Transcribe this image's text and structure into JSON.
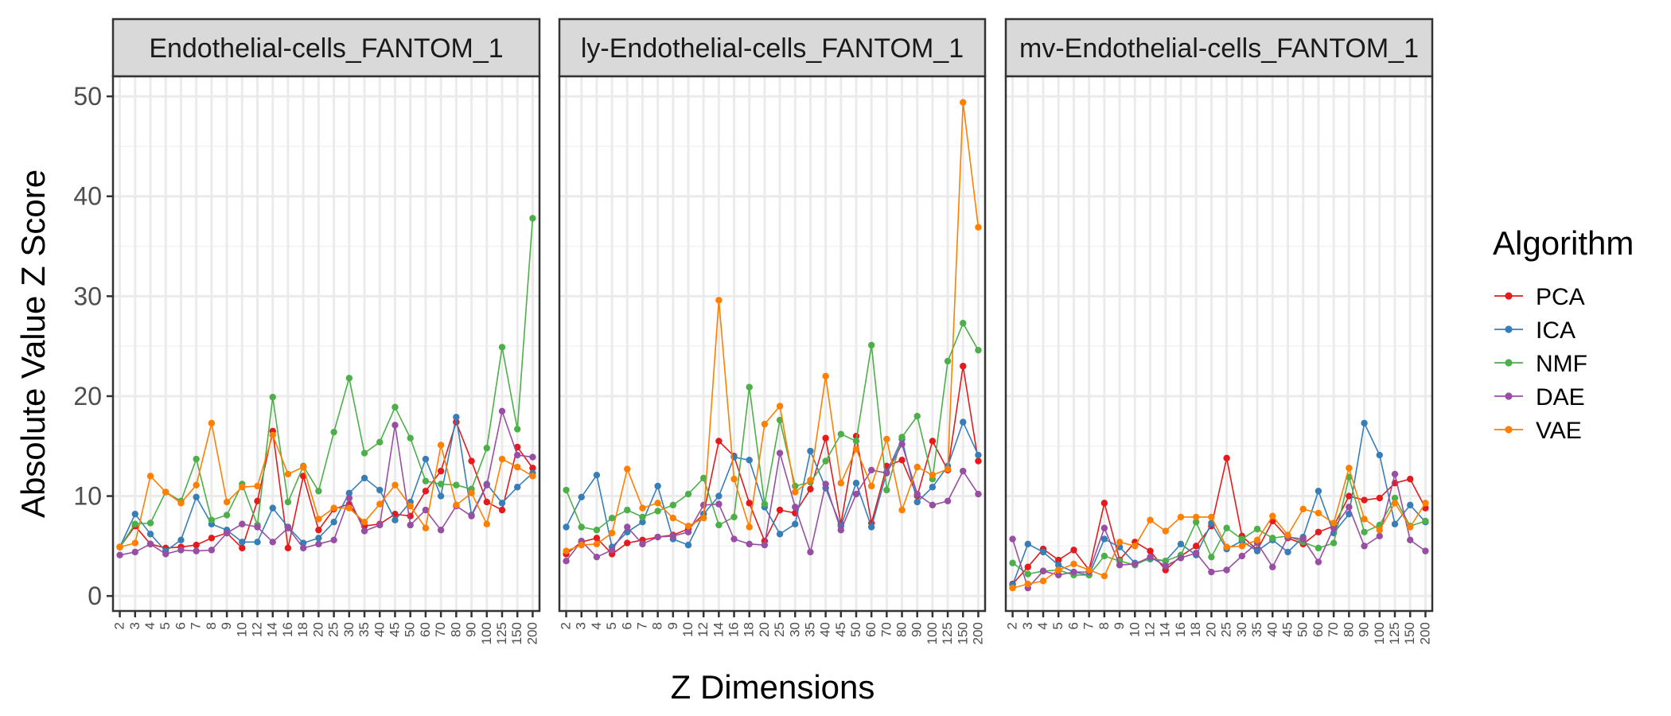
{
  "chart_data": {
    "type": "line",
    "xlabel": "Z Dimensions",
    "ylabel": "Absolute Value Z Score",
    "ylim": [
      -1.5,
      52
    ],
    "yticks": [
      0,
      10,
      20,
      30,
      40,
      50
    ],
    "grid": true,
    "legend": {
      "title": "Algorithm",
      "position": "right"
    },
    "categories": [
      "2",
      "3",
      "4",
      "5",
      "6",
      "7",
      "8",
      "9",
      "10",
      "12",
      "14",
      "16",
      "18",
      "20",
      "25",
      "30",
      "35",
      "40",
      "45",
      "50",
      "60",
      "70",
      "80",
      "90",
      "100",
      "125",
      "150",
      "200"
    ],
    "series_colors": {
      "PCA": "#e41a1c",
      "ICA": "#377eb8",
      "NMF": "#4daf4a",
      "DAE": "#984ea3",
      "VAE": "#ff7f00"
    },
    "panels": [
      {
        "title": "Endothelial-cells_FANTOM_1",
        "series": [
          {
            "name": "PCA",
            "values": [
              4.9,
              7.0,
              5.2,
              4.8,
              4.9,
              5.1,
              5.8,
              6.3,
              4.8,
              9.5,
              16.5,
              4.8,
              12.0,
              6.6,
              8.7,
              9.2,
              7.0,
              7.2,
              8.2,
              8.0,
              10.5,
              12.5,
              17.4,
              13.5,
              9.4,
              8.6,
              14.9,
              12.8
            ]
          },
          {
            "name": "ICA",
            "values": [
              4.9,
              8.2,
              6.2,
              4.5,
              5.6,
              9.9,
              7.2,
              6.6,
              5.4,
              5.4,
              8.8,
              6.9,
              5.3,
              5.8,
              7.4,
              10.3,
              11.8,
              10.6,
              7.6,
              9.4,
              13.7,
              10.0,
              17.9,
              8.1,
              11.2,
              9.3,
              10.9,
              12.3
            ]
          },
          {
            "name": "NMF",
            "values": [
              4.9,
              7.2,
              7.3,
              10.4,
              9.5,
              13.7,
              7.6,
              8.1,
              11.2,
              7.1,
              19.9,
              9.4,
              13.0,
              10.5,
              16.4,
              21.8,
              14.3,
              15.4,
              18.9,
              15.8,
              11.5,
              11.2,
              11.1,
              10.7,
              14.8,
              24.9,
              16.7,
              37.8
            ]
          },
          {
            "name": "DAE",
            "values": [
              4.1,
              4.4,
              5.2,
              4.2,
              4.6,
              4.5,
              4.6,
              6.3,
              7.2,
              6.9,
              5.4,
              6.8,
              4.8,
              5.2,
              5.6,
              9.8,
              6.5,
              7.1,
              17.1,
              7.1,
              8.6,
              6.6,
              9.0,
              8.0,
              11.1,
              18.5,
              14.1,
              13.9
            ]
          },
          {
            "name": "VAE",
            "values": [
              4.9,
              5.3,
              12.0,
              10.4,
              9.3,
              11.1,
              17.3,
              9.4,
              10.9,
              11.0,
              16.1,
              12.2,
              12.9,
              7.7,
              8.8,
              8.8,
              7.4,
              9.2,
              11.1,
              9.0,
              6.8,
              15.1,
              9.1,
              10.3,
              7.2,
              13.7,
              12.9,
              12.0
            ]
          }
        ]
      },
      {
        "title": "ly-Endothelial-cells_FANTOM_1",
        "series": [
          {
            "name": "PCA",
            "values": [
              4.2,
              5.4,
              5.8,
              4.2,
              5.3,
              5.6,
              5.9,
              6.1,
              6.7,
              8.2,
              15.5,
              14.0,
              9.3,
              5.5,
              8.6,
              8.3,
              10.7,
              15.8,
              7.2,
              16.0,
              7.3,
              13.0,
              13.6,
              10.0,
              15.5,
              12.6,
              23.0,
              13.5
            ]
          },
          {
            "name": "ICA",
            "values": [
              6.9,
              9.9,
              12.1,
              4.9,
              6.4,
              7.4,
              11.0,
              5.7,
              5.1,
              8.2,
              10.0,
              13.9,
              13.6,
              8.9,
              6.2,
              7.2,
              14.5,
              10.8,
              7.0,
              11.3,
              6.9,
              12.4,
              15.7,
              9.4,
              10.9,
              13.0,
              17.4,
              14.1
            ]
          },
          {
            "name": "NMF",
            "values": [
              10.6,
              6.9,
              6.6,
              7.8,
              8.6,
              7.9,
              8.5,
              9.1,
              10.2,
              11.8,
              7.1,
              7.9,
              20.9,
              9.2,
              17.6,
              11.0,
              11.4,
              13.5,
              16.2,
              15.5,
              25.1,
              10.6,
              15.9,
              18.0,
              11.7,
              23.5,
              27.3,
              24.6
            ]
          },
          {
            "name": "DAE",
            "values": [
              3.5,
              5.5,
              3.9,
              4.6,
              6.9,
              5.2,
              5.9,
              6.0,
              6.4,
              9.1,
              9.2,
              5.7,
              5.2,
              5.1,
              14.3,
              8.9,
              4.4,
              11.2,
              6.6,
              10.2,
              12.6,
              12.3,
              15.2,
              10.2,
              9.1,
              9.5,
              12.5,
              10.2
            ]
          },
          {
            "name": "VAE",
            "values": [
              4.5,
              5.1,
              5.2,
              6.3,
              12.7,
              8.8,
              9.3,
              7.8,
              7.0,
              7.8,
              29.6,
              11.7,
              6.9,
              17.2,
              19.0,
              10.4,
              11.6,
              22.0,
              11.3,
              14.7,
              11.0,
              15.7,
              8.6,
              12.9,
              12.1,
              12.7,
              49.4,
              36.9
            ]
          }
        ]
      },
      {
        "title": "mv-Endothelial-cells_FANTOM_1",
        "series": [
          {
            "name": "PCA",
            "values": [
              1.2,
              2.9,
              4.7,
              3.6,
              4.6,
              2.6,
              9.3,
              3.6,
              5.4,
              4.5,
              2.6,
              4.0,
              5.0,
              7.0,
              13.8,
              6.0,
              4.6,
              7.5,
              5.8,
              5.2,
              6.4,
              7.0,
              10.0,
              9.6,
              9.8,
              11.3,
              11.7,
              8.8
            ]
          },
          {
            "name": "ICA",
            "values": [
              1.1,
              5.2,
              4.4,
              3.1,
              2.4,
              2.1,
              5.7,
              4.9,
              3.3,
              3.7,
              3.5,
              5.2,
              4.1,
              7.3,
              4.7,
              5.5,
              4.5,
              5.6,
              4.4,
              5.9,
              10.5,
              6.3,
              8.2,
              17.3,
              14.1,
              7.2,
              9.1,
              7.4
            ]
          },
          {
            "name": "NMF",
            "values": [
              3.3,
              2.2,
              2.5,
              2.6,
              2.1,
              2.1,
              4.0,
              3.5,
              3.1,
              3.8,
              3.5,
              4.1,
              7.4,
              3.9,
              6.8,
              5.7,
              6.7,
              5.8,
              6.0,
              5.4,
              4.8,
              5.3,
              11.9,
              6.4,
              7.1,
              9.8,
              7.0,
              7.5
            ]
          },
          {
            "name": "DAE",
            "values": [
              5.7,
              0.8,
              2.5,
              2.1,
              2.4,
              2.4,
              6.8,
              3.1,
              3.2,
              3.9,
              3.0,
              3.8,
              4.3,
              2.4,
              2.6,
              4.0,
              5.3,
              2.9,
              5.9,
              5.7,
              3.4,
              6.8,
              8.9,
              5.0,
              6.0,
              12.2,
              5.6,
              4.5
            ]
          },
          {
            "name": "VAE",
            "values": [
              0.8,
              1.2,
              1.5,
              2.6,
              3.2,
              2.6,
              2.0,
              5.4,
              5.0,
              7.6,
              6.5,
              7.9,
              7.9,
              7.9,
              4.9,
              5.0,
              5.6,
              8.0,
              6.1,
              8.7,
              8.3,
              7.3,
              12.8,
              7.7,
              6.6,
              9.3,
              6.9,
              9.3
            ]
          }
        ]
      }
    ]
  }
}
